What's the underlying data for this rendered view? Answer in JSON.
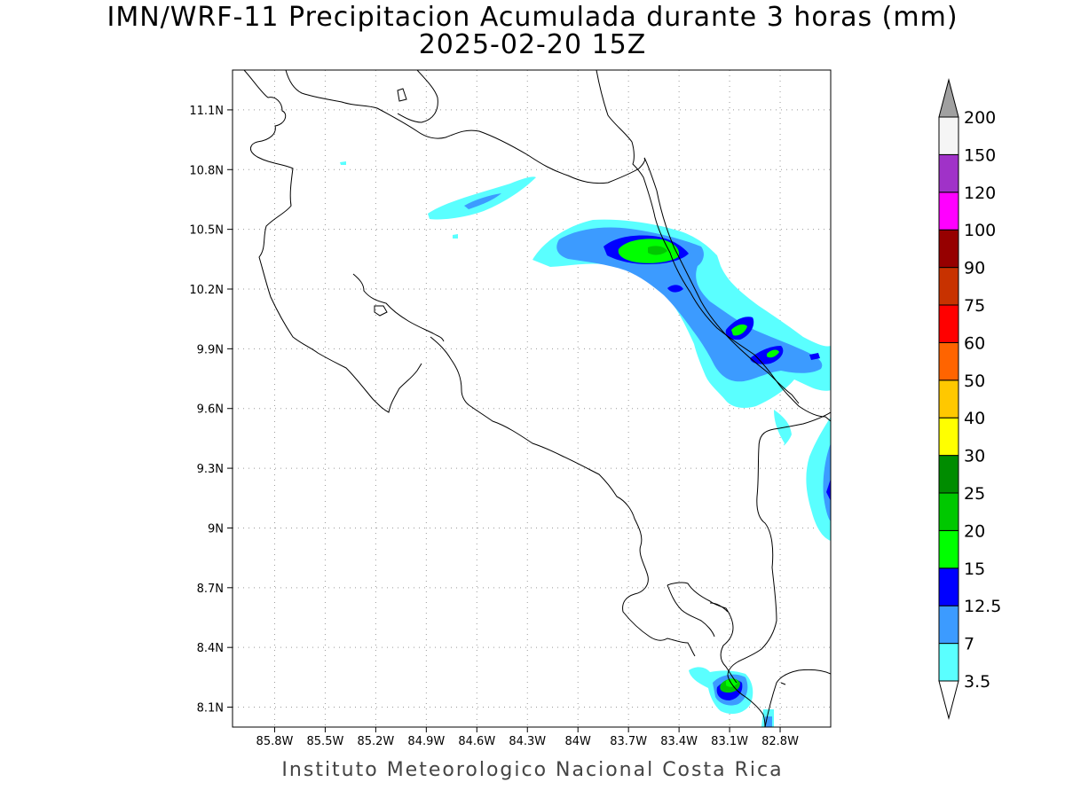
{
  "title": {
    "line1": "IMN/WRF-11 Precipitacion Acumulada durante 3 horas (mm)",
    "line2": "2025-02-20 15Z"
  },
  "footer": "Instituto Meteorologico Nacional Costa Rica",
  "map": {
    "extent": {
      "lon_min": -86.05,
      "lon_max": -82.5,
      "lat_min": 8.0,
      "lat_max": 11.3
    },
    "lon_ticks": [
      {
        "value": -85.8,
        "label": "85.8W"
      },
      {
        "value": -85.5,
        "label": "85.5W"
      },
      {
        "value": -85.2,
        "label": "85.2W"
      },
      {
        "value": -84.9,
        "label": "84.9W"
      },
      {
        "value": -84.6,
        "label": "84.6W"
      },
      {
        "value": -84.3,
        "label": "84.3W"
      },
      {
        "value": -84.0,
        "label": "84W"
      },
      {
        "value": -83.7,
        "label": "83.7W"
      },
      {
        "value": -83.4,
        "label": "83.4W"
      },
      {
        "value": -83.1,
        "label": "83.1W"
      },
      {
        "value": -82.8,
        "label": "82.8W"
      }
    ],
    "lat_ticks": [
      {
        "value": 11.1,
        "label": "11.1N"
      },
      {
        "value": 10.8,
        "label": "10.8N"
      },
      {
        "value": 10.5,
        "label": "10.5N"
      },
      {
        "value": 10.2,
        "label": "10.2N"
      },
      {
        "value": 9.9,
        "label": "9.9N"
      },
      {
        "value": 9.6,
        "label": "9.6N"
      },
      {
        "value": 9.3,
        "label": "9.3N"
      },
      {
        "value": 9.0,
        "label": "9N"
      },
      {
        "value": 8.7,
        "label": "8.7N"
      },
      {
        "value": 8.4,
        "label": "8.4N"
      },
      {
        "value": 8.1,
        "label": "8.1N"
      }
    ],
    "grid": true
  },
  "colorbar": {
    "levels": [
      {
        "label": "3.5",
        "color": "#5affff"
      },
      {
        "label": "7",
        "color": "#3c9bff"
      },
      {
        "label": "12.5",
        "color": "#0000ff"
      },
      {
        "label": "15",
        "color": "#00ff00"
      },
      {
        "label": "20",
        "color": "#00c800"
      },
      {
        "label": "25",
        "color": "#008c00"
      },
      {
        "label": "30",
        "color": "#ffff00"
      },
      {
        "label": "40",
        "color": "#ffc800"
      },
      {
        "label": "50",
        "color": "#ff6400"
      },
      {
        "label": "60",
        "color": "#ff0000"
      },
      {
        "label": "75",
        "color": "#c83200"
      },
      {
        "label": "90",
        "color": "#960000"
      },
      {
        "label": "100",
        "color": "#ff00ff"
      },
      {
        "label": "120",
        "color": "#a032c8"
      },
      {
        "label": "150",
        "color": "#f5f5f5"
      },
      {
        "label": "200",
        "color": "#f5f5f5"
      }
    ],
    "under_color": "#ffffff",
    "over_color": "#a0a0a0"
  },
  "chart_data": {
    "type": "heatmap",
    "title": "IMN/WRF-11 Precipitacion Acumulada durante 3 horas (mm)",
    "subtitle": "2025-02-20 15Z",
    "units": "mm",
    "xlim": [
      -86.05,
      -82.5
    ],
    "ylim": [
      8.0,
      11.3
    ],
    "colorbar_levels": [
      3.5,
      7,
      12.5,
      15,
      20,
      25,
      30,
      40,
      50,
      60,
      75,
      90,
      100,
      120,
      150,
      200
    ],
    "precipitation_areas": [
      {
        "lon": -84.55,
        "lat": 10.62,
        "max_mm": 12.5
      },
      {
        "lon": -83.62,
        "lat": 10.38,
        "max_mm": 20
      },
      {
        "lon": -83.1,
        "lat": 9.98,
        "max_mm": 20
      },
      {
        "lon": -82.95,
        "lat": 9.88,
        "max_mm": 20
      },
      {
        "lon": -82.55,
        "lat": 9.25,
        "max_mm": 12.5
      },
      {
        "lon": -83.05,
        "lat": 8.2,
        "max_mm": 20
      }
    ]
  }
}
